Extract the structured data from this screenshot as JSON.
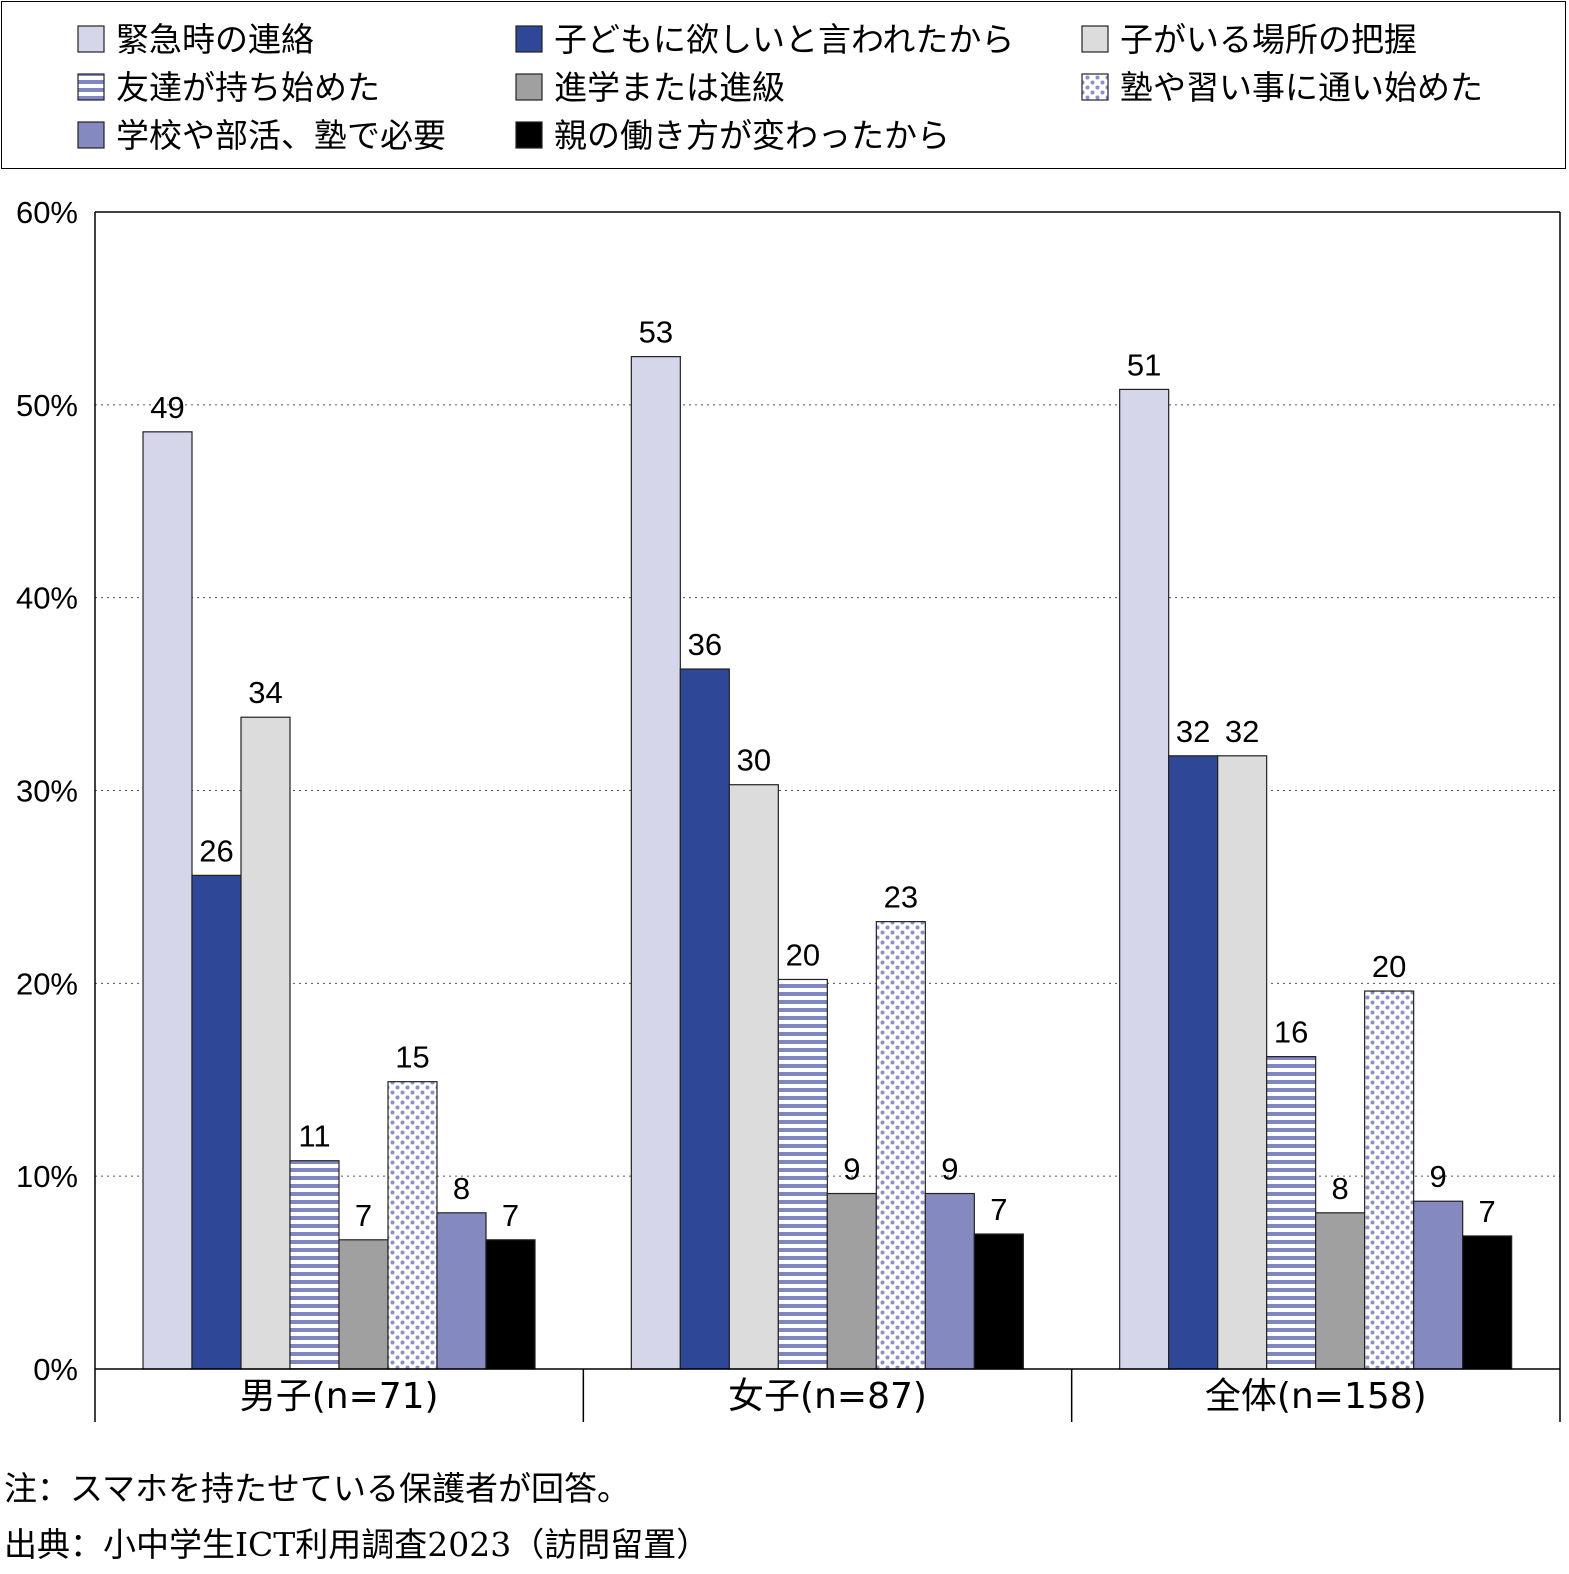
{
  "chart_data": {
    "type": "bar",
    "categories": [
      "男子(n=71)",
      "女子(n=87)",
      "全体(n=158)"
    ],
    "y_ticks": [
      "0%",
      "10%",
      "20%",
      "30%",
      "40%",
      "50%",
      "60%"
    ],
    "ylim": [
      0,
      60
    ],
    "grid": true,
    "legend_position": "top",
    "series": [
      {
        "name": "緊急時の連絡",
        "fill": "solid",
        "color": "#d5d6ea",
        "values": [
          48.6,
          52.5,
          50.8
        ],
        "labels": [
          "49",
          "53",
          "51"
        ]
      },
      {
        "name": "子どもに欲しいと言われたから",
        "fill": "solid",
        "color": "#2e4796",
        "values": [
          25.6,
          36.3,
          31.8
        ],
        "labels": [
          "26",
          "36",
          "32"
        ]
      },
      {
        "name": "子がいる場所の把握",
        "fill": "solid",
        "color": "#dcdcdc",
        "values": [
          33.8,
          30.3,
          31.8
        ],
        "labels": [
          "34",
          "30",
          "32"
        ]
      },
      {
        "name": "友達が持ち始めた",
        "fill": "stripes",
        "color": "#7f86c3",
        "values": [
          10.8,
          20.2,
          16.2
        ],
        "labels": [
          "11",
          "20",
          "16"
        ]
      },
      {
        "name": "進学または進級",
        "fill": "solid",
        "color": "#a0a0a0",
        "values": [
          6.7,
          9.1,
          8.1
        ],
        "labels": [
          "7",
          "9",
          "8"
        ]
      },
      {
        "name": "塾や習い事に通い始めた",
        "fill": "dots",
        "color": "#8b90c8",
        "values": [
          14.9,
          23.2,
          19.6
        ],
        "labels": [
          "15",
          "23",
          "20"
        ]
      },
      {
        "name": "学校や部活、塾で必要",
        "fill": "solid",
        "color": "#8489c0",
        "values": [
          8.1,
          9.1,
          8.7
        ],
        "labels": [
          "8",
          "9",
          "9"
        ]
      },
      {
        "name": "親の働き方が変わったから",
        "fill": "solid",
        "color": "#000000",
        "values": [
          6.7,
          7.0,
          6.9
        ],
        "labels": [
          "7",
          "7",
          "7"
        ]
      }
    ]
  },
  "notes": {
    "note": "注：スマホを持たせている保護者が回答。",
    "source": "出典：小中学生ICT利用調査2023（訪問留置）"
  }
}
